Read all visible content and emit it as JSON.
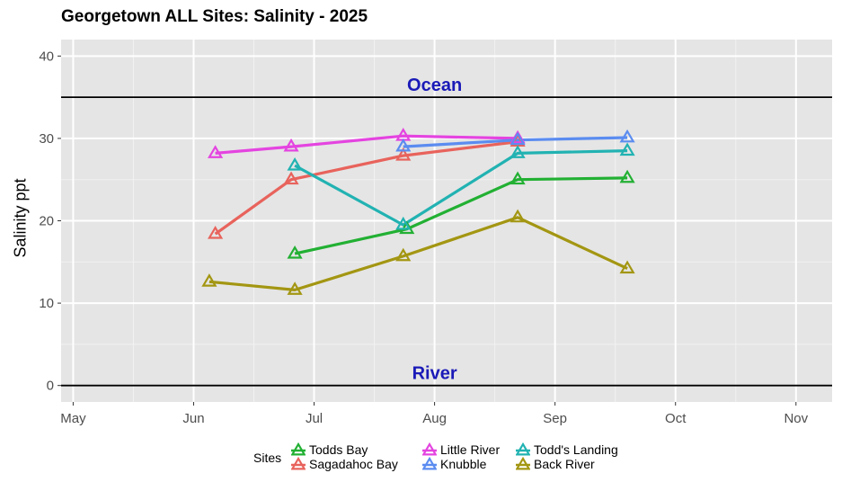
{
  "chart_data": {
    "type": "line",
    "title": "Georgetown ALL Sites: Salinity - 2025",
    "xlabel": "",
    "ylabel": "Salinity ppt",
    "x_ticks": [
      "May",
      "Jun",
      "Jul",
      "Aug",
      "Sep",
      "Oct",
      "Nov"
    ],
    "y_ticks": [
      0,
      10,
      20,
      30,
      40
    ],
    "xlim": [
      -0.1,
      6.3
    ],
    "ylim": [
      -2,
      42
    ],
    "reference_lines": [
      {
        "label": "Ocean",
        "y": 35
      },
      {
        "label": "River",
        "y": 0
      }
    ],
    "legend_title": "Sites",
    "series": [
      {
        "name": "Todds Bay",
        "color": "#22b033",
        "points": [
          [
            1.84,
            16.0
          ],
          [
            2.77,
            19.0
          ],
          [
            3.69,
            25.0
          ],
          [
            4.6,
            25.2
          ]
        ]
      },
      {
        "name": "Sagadahoc Bay",
        "color": "#e8635c",
        "points": [
          [
            1.18,
            18.4
          ],
          [
            1.81,
            25.0
          ],
          [
            2.74,
            27.9
          ],
          [
            3.69,
            29.6
          ]
        ]
      },
      {
        "name": "Little River",
        "color": "#e444e0",
        "points": [
          [
            1.18,
            28.2
          ],
          [
            1.81,
            29.0
          ],
          [
            2.74,
            30.3
          ],
          [
            3.69,
            30.0
          ]
        ]
      },
      {
        "name": "Knubble",
        "color": "#5b8cf0",
        "points": [
          [
            2.74,
            29.0
          ],
          [
            3.69,
            29.8
          ],
          [
            4.6,
            30.1
          ]
        ]
      },
      {
        "name": "Todd's Landing",
        "color": "#22b2b2",
        "points": [
          [
            1.84,
            26.7
          ],
          [
            2.74,
            19.5
          ],
          [
            3.69,
            28.2
          ],
          [
            4.6,
            28.5
          ]
        ]
      },
      {
        "name": "Back River",
        "color": "#a39612",
        "points": [
          [
            1.13,
            12.6
          ],
          [
            1.84,
            11.6
          ],
          [
            2.74,
            15.7
          ],
          [
            3.69,
            20.4
          ],
          [
            4.6,
            14.2
          ]
        ]
      }
    ]
  }
}
